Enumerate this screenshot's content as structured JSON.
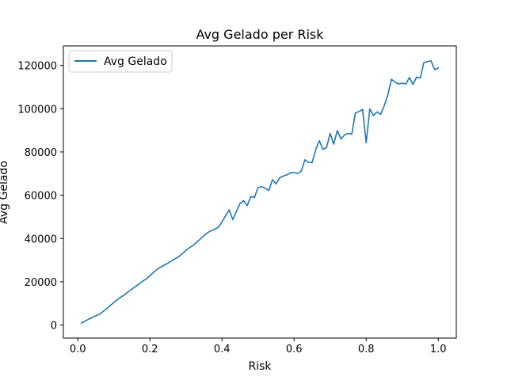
{
  "chart_data": {
    "type": "line",
    "title": "Avg Gelado per Risk",
    "xlabel": "Risk",
    "ylabel": "Avg Gelado",
    "xlim": [
      -0.04,
      1.05
    ],
    "ylim": [
      -6000,
      129000
    ],
    "xticks": [
      0.0,
      0.2,
      0.4,
      0.6,
      0.8,
      1.0
    ],
    "xtick_labels": [
      "0.0",
      "0.2",
      "0.4",
      "0.6",
      "0.8",
      "1.0"
    ],
    "yticks": [
      0,
      20000,
      40000,
      60000,
      80000,
      100000,
      120000
    ],
    "ytick_labels": [
      "0",
      "20000",
      "40000",
      "60000",
      "80000",
      "100000",
      "120000"
    ],
    "grid": false,
    "legend": {
      "placement": "top-left",
      "entries": [
        "Avg Gelado"
      ]
    },
    "colors": {
      "series": "#1f77b4",
      "axes": "#000000",
      "legend_border": "#cccccc"
    },
    "series": [
      {
        "name": "Avg Gelado",
        "x": [
          0.01,
          0.02,
          0.03,
          0.04,
          0.05,
          0.06,
          0.07,
          0.08,
          0.09,
          0.1,
          0.11,
          0.12,
          0.13,
          0.14,
          0.15,
          0.16,
          0.17,
          0.18,
          0.19,
          0.2,
          0.21,
          0.22,
          0.23,
          0.24,
          0.25,
          0.26,
          0.27,
          0.28,
          0.29,
          0.3,
          0.31,
          0.32,
          0.33,
          0.34,
          0.35,
          0.36,
          0.37,
          0.38,
          0.39,
          0.4,
          0.41,
          0.42,
          0.43,
          0.44,
          0.45,
          0.46,
          0.47,
          0.48,
          0.49,
          0.5,
          0.51,
          0.52,
          0.53,
          0.54,
          0.55,
          0.56,
          0.57,
          0.58,
          0.59,
          0.6,
          0.61,
          0.62,
          0.63,
          0.64,
          0.65,
          0.66,
          0.67,
          0.68,
          0.69,
          0.7,
          0.71,
          0.72,
          0.73,
          0.74,
          0.75,
          0.76,
          0.77,
          0.78,
          0.79,
          0.8,
          0.81,
          0.82,
          0.83,
          0.84,
          0.85,
          0.86,
          0.87,
          0.88,
          0.89,
          0.9,
          0.91,
          0.92,
          0.93,
          0.94,
          0.95,
          0.96,
          0.97,
          0.98,
          0.99,
          1.0
        ],
        "y": [
          900,
          1800,
          2700,
          3500,
          4300,
          5000,
          6200,
          7600,
          9000,
          10400,
          11800,
          13000,
          14000,
          15400,
          16600,
          17800,
          19000,
          20300,
          21300,
          22800,
          24300,
          25800,
          26800,
          27700,
          28600,
          29600,
          30600,
          31600,
          33000,
          34400,
          35800,
          36800,
          38300,
          39800,
          41300,
          42700,
          43600,
          44300,
          45200,
          47600,
          50600,
          53200,
          48700,
          52500,
          56200,
          57500,
          55200,
          59400,
          59000,
          63500,
          64000,
          63200,
          62200,
          67200,
          65200,
          68100,
          68800,
          69400,
          70300,
          70500,
          70000,
          71200,
          76400,
          75200,
          75100,
          81000,
          85200,
          81200,
          82000,
          88600,
          83600,
          89900,
          86000,
          87900,
          88600,
          88200,
          98000,
          98700,
          99600,
          84300,
          99900,
          96800,
          98500,
          97400,
          101300,
          106300,
          113600,
          112300,
          111400,
          111800,
          111400,
          114400,
          111200,
          114600,
          114200,
          121300,
          121800,
          122100,
          118000,
          118800
        ]
      }
    ]
  }
}
